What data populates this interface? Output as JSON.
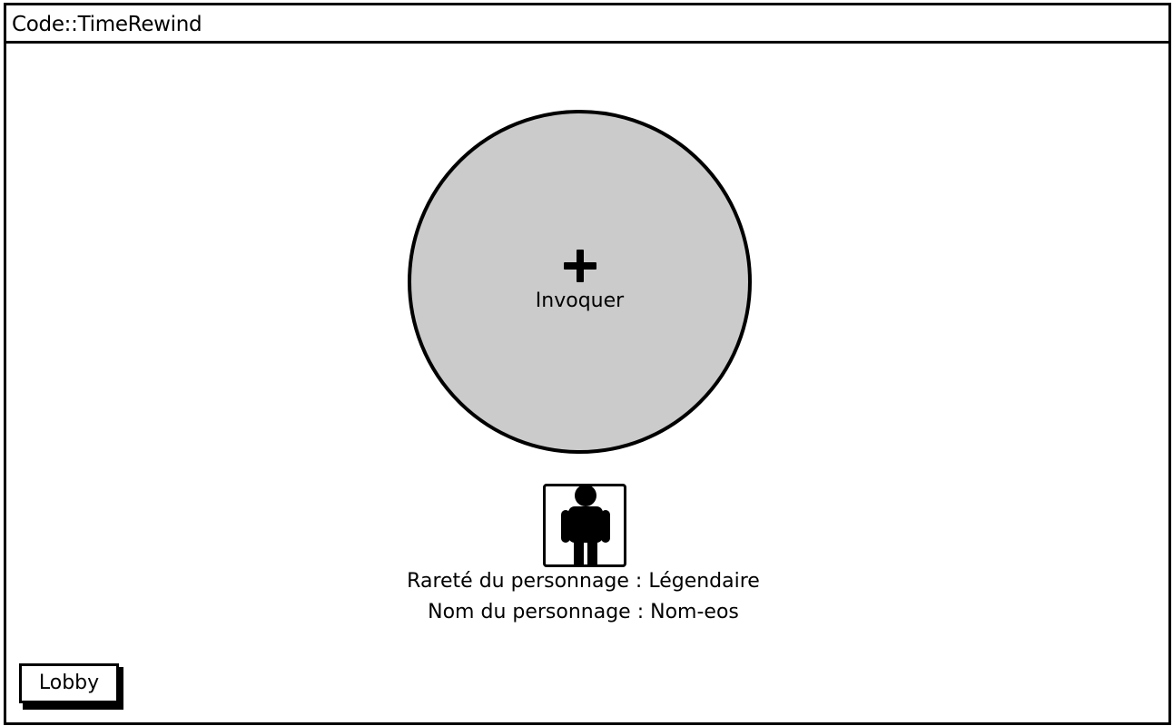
{
  "window": {
    "title": "Code::TimeRewind"
  },
  "summon": {
    "icon": "plus-icon",
    "label": "Invoquer",
    "circle_color": "#cbcbcb"
  },
  "character": {
    "avatar_icon": "person-icon",
    "rarity_line": "Rareté du personnage : Légendaire",
    "name_line": "Nom du personnage : Nom-eos"
  },
  "nav": {
    "lobby_label": "Lobby"
  }
}
